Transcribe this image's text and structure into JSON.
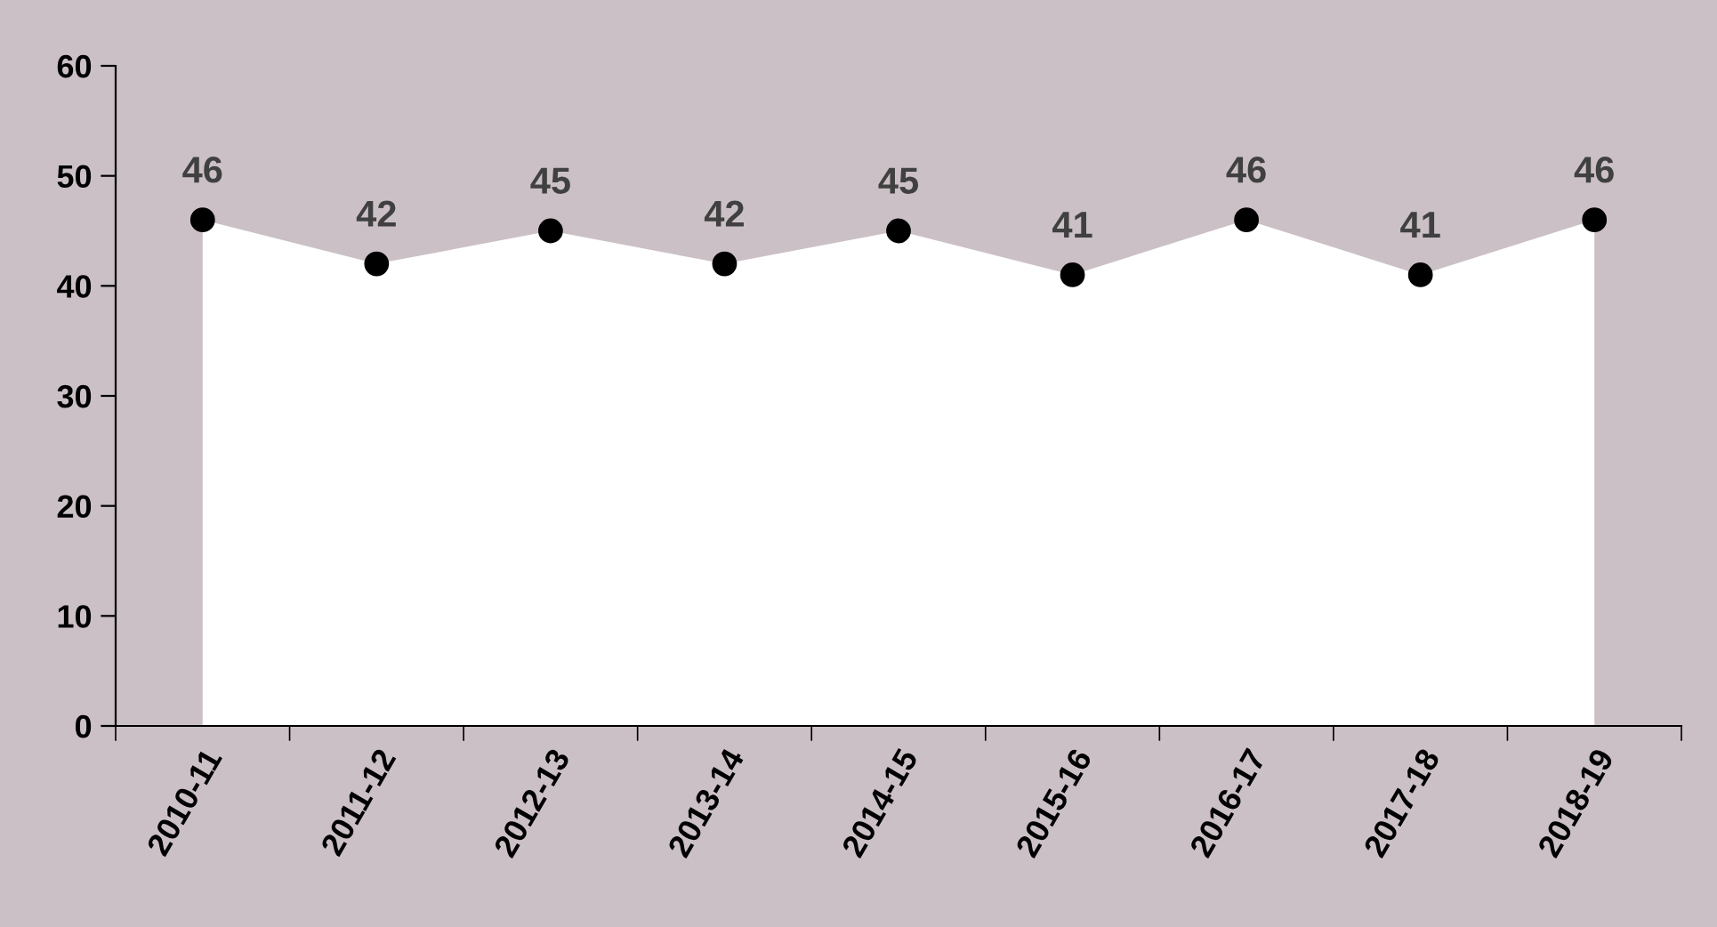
{
  "chart_data": {
    "type": "area",
    "categories": [
      "2010-11",
      "2011-12",
      "2012-13",
      "2013-14",
      "2014-15",
      "2015-16",
      "2016-17",
      "2017-18",
      "2018-19"
    ],
    "series": [
      {
        "color": "#ffffff",
        "values": [
          46,
          42,
          45,
          42,
          45,
          41,
          46,
          41,
          46
        ]
      }
    ],
    "ylim": [
      0,
      60
    ],
    "yticks": [
      0,
      10,
      20,
      30,
      40,
      50,
      60
    ],
    "data_labels": true,
    "marker": "circle",
    "grid": false,
    "legend": false
  }
}
